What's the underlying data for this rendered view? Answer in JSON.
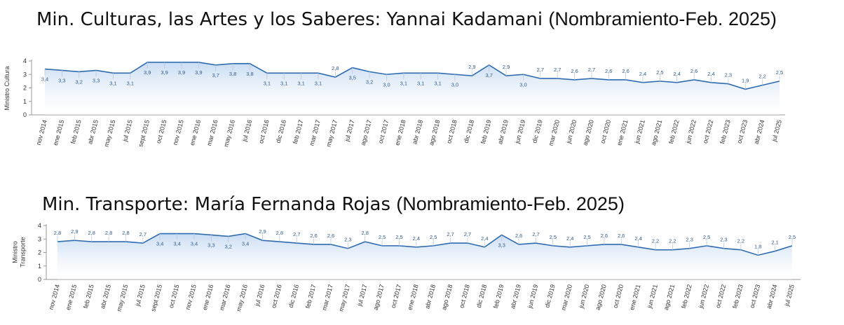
{
  "chart_data": [
    {
      "type": "area",
      "title": "Min. Culturas, las Artes y los Saberes: Yannai Kadamani",
      "title_paren": "(Nombramiento-Feb. 2025)",
      "ylabel": "Ministro Cultura",
      "ylim": [
        0,
        4
      ],
      "yticks": [
        "0",
        "1",
        "2",
        "3",
        "4"
      ],
      "categories": [
        "nov 2014",
        "ene 2015",
        "feb 2015",
        "abr 2015",
        "may 2015",
        "jul 2015",
        "sept 2015",
        "oct 2015",
        "nov 2015",
        "ene 2016",
        "mar 2016",
        "may 2016",
        "jul 2016",
        "oct 2016",
        "dic 2016",
        "feb 2017",
        "mar 2017",
        "may 2017",
        "jul 2017",
        "ago 2017",
        "oct 2017",
        "ene 2018",
        "abr 2018",
        "ago 2018",
        "oct 2018",
        "dic 2018",
        "feb 2019",
        "abr 2019",
        "jun 2019",
        "dic 2019",
        "mar 2020",
        "jun 2020",
        "ago 2020",
        "oct 2020",
        "ene 2021",
        "jun 2021",
        "ago 2021",
        "feb 2022",
        "jun 2022",
        "oct 2022",
        "feb 2023",
        "oct 2023",
        "abr 2024",
        "jul 2025"
      ],
      "values": [
        3.4,
        3.3,
        3.2,
        3.3,
        3.1,
        3.1,
        3.9,
        3.9,
        3.9,
        3.9,
        3.7,
        3.8,
        3.8,
        3.1,
        3.1,
        3.1,
        3.1,
        2.8,
        3.5,
        3.2,
        3.0,
        3.1,
        3.1,
        3.1,
        3.0,
        2.9,
        3.7,
        2.9,
        3.0,
        2.7,
        2.7,
        2.6,
        2.7,
        2.6,
        2.6,
        2.4,
        2.5,
        2.4,
        2.6,
        2.4,
        2.3,
        1.9,
        2.2,
        2.5
      ],
      "labels": [
        "3,4",
        "3,3",
        "3,2",
        "3,3",
        "3,1",
        "3,1",
        "3,9",
        "3,9",
        "3,9",
        "3,9",
        "3,7",
        "3,8",
        "3,8",
        "3,1",
        "3,1",
        "3,1",
        "3,1",
        "2,8",
        "3,5",
        "3,2",
        "3,0",
        "3,1",
        "3,1",
        "3,1",
        "3,0",
        "2,9",
        "3,7",
        "2,9",
        "3,0",
        "2,7",
        "2,7",
        "2,6",
        "2,7",
        "2,6",
        "2,6",
        "2,4",
        "2,5",
        "2,4",
        "2,6",
        "2,4",
        "2,3",
        "1,9",
        "2,2",
        "2,5"
      ],
      "label_above": [
        0,
        0,
        0,
        0,
        0,
        0,
        0,
        0,
        0,
        0,
        0,
        0,
        0,
        0,
        0,
        0,
        0,
        1,
        0,
        0,
        0,
        0,
        0,
        0,
        0,
        1,
        0,
        1,
        0,
        1,
        1,
        1,
        1,
        1,
        1,
        1,
        1,
        1,
        1,
        1,
        1,
        1,
        1,
        1
      ],
      "line_color": "#2e6bb0",
      "fill_color": "#cfe0f4"
    },
    {
      "type": "area",
      "title": "Min. Transporte: María Fernanda Rojas",
      "title_paren": "(Nombramiento-Feb. 2025)",
      "ylabel": [
        "Ministro",
        "Transporte"
      ],
      "ylim": [
        0,
        4
      ],
      "yticks": [
        "0",
        "1",
        "2",
        "3",
        "4"
      ],
      "categories": [
        "nov 2014",
        "ene 2015",
        "feb 2015",
        "abr 2015",
        "may 2015",
        "jul 2015",
        "sept 2015",
        "oct 2015",
        "nov 2015",
        "ene 2016",
        "mar 2016",
        "may 2016",
        "jul 2016",
        "oct 2016",
        "dic 2016",
        "feb 2017",
        "mar 2017",
        "may 2017",
        "jul 2017",
        "ago 2017",
        "oct 2017",
        "ene 2018",
        "abr 2018",
        "ago 2018",
        "oct 2018",
        "dic 2018",
        "feb 2019",
        "abr 2019",
        "jun 2019",
        "dic 2019",
        "mar 2020",
        "jun 2020",
        "ago 2020",
        "oct 2020",
        "ene 2021",
        "jun 2021",
        "ago 2021",
        "feb 2022",
        "jun 2022",
        "oct 2022",
        "feb 2023",
        "oct 2023",
        "abr 2024",
        "jul 2025"
      ],
      "values": [
        2.8,
        2.9,
        2.8,
        2.8,
        2.8,
        2.7,
        3.4,
        3.4,
        3.4,
        3.3,
        3.2,
        3.4,
        2.9,
        2.8,
        2.7,
        2.6,
        2.6,
        2.3,
        2.8,
        2.5,
        2.5,
        2.4,
        2.5,
        2.7,
        2.7,
        2.4,
        3.3,
        2.6,
        2.7,
        2.5,
        2.4,
        2.5,
        2.6,
        2.6,
        2.4,
        2.2,
        2.2,
        2.3,
        2.5,
        2.3,
        2.2,
        1.8,
        2.1,
        2.5
      ],
      "labels": [
        "2,8",
        "2,9",
        "2,8",
        "2,8",
        "2,8",
        "2,7",
        "3,4",
        "3,4",
        "3,4",
        "3,3",
        "3,2",
        "3,4",
        "2,9",
        "2,8",
        "2,7",
        "2,6",
        "2,6",
        "2,3",
        "2,8",
        "2,5",
        "2,5",
        "2,4",
        "2,5",
        "2,7",
        "2,7",
        "2,4",
        "3,3",
        "2,6",
        "2,7",
        "2,5",
        "2,4",
        "2,5",
        "2,6",
        "2,6",
        "2,4",
        "2,2",
        "2,2",
        "2,3",
        "2,5",
        "2,3",
        "2,2",
        "1,8",
        "2,1",
        "2,5"
      ],
      "label_above": [
        1,
        1,
        1,
        1,
        1,
        1,
        0,
        0,
        0,
        0,
        0,
        0,
        1,
        1,
        1,
        1,
        1,
        1,
        1,
        1,
        1,
        1,
        1,
        1,
        1,
        1,
        0,
        1,
        1,
        1,
        1,
        1,
        1,
        1,
        1,
        1,
        1,
        1,
        1,
        1,
        1,
        1,
        1,
        1
      ],
      "line_color": "#2e6bb0",
      "fill_color": "#cfe0f4"
    }
  ]
}
